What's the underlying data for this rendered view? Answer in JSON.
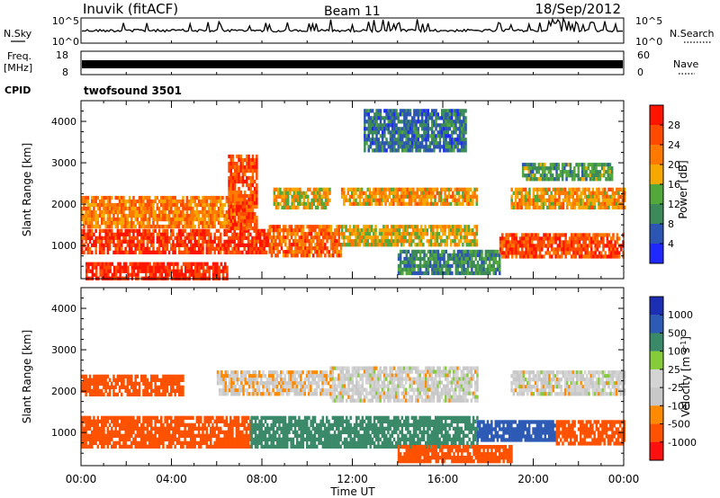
{
  "header": {
    "station": "Inuvik (fitACF)",
    "beam": "Beam 11",
    "date": "18/Sep/2012"
  },
  "noise_panel": {
    "left_label": "N.Sky",
    "left_ticks": [
      "10^5",
      "10^0"
    ],
    "right_ticks": [
      "10^5",
      "10^0"
    ],
    "right_label": "N.Search"
  },
  "freq_panel": {
    "left_label_top": "Freq.",
    "left_label_bottom": "[MHz]",
    "left_ticks": [
      "18",
      "8"
    ],
    "right_ticks": [
      "60",
      "0"
    ],
    "right_label": "Nave"
  },
  "cpid": {
    "label": "CPID",
    "value": "twofsound 3501"
  },
  "x_axis": {
    "label": "Time UT",
    "ticks": [
      "00:00",
      "04:00",
      "08:00",
      "12:00",
      "16:00",
      "20:00",
      "00:00"
    ],
    "range_hours": [
      0,
      24
    ]
  },
  "colors": {
    "power_scale": [
      "#1e28ff",
      "#2d56b4",
      "#3c8a5a",
      "#52a83a",
      "#f5a800",
      "#ff7800",
      "#ff4a00",
      "#ff1400"
    ],
    "velocity_scale": [
      "#ff1010",
      "#ff5200",
      "#ff8a00",
      "#c8c8c8",
      "#d4d4d4",
      "#86cc3a",
      "#3a8a6a",
      "#2c5ab4",
      "#1c2eb4"
    ]
  },
  "chart_data": [
    {
      "type": "heatmap",
      "title": "Power",
      "ylabel": "Slant Range [km]",
      "xlabel": "",
      "ylim": [
        200,
        4500
      ],
      "xlim_hours": [
        0,
        24
      ],
      "y_ticks": [
        1000,
        2000,
        3000,
        4000
      ],
      "colorbar": {
        "label": "Power [dB]",
        "ticks": [
          "28",
          "24",
          "20",
          "16",
          "12",
          "8",
          "4"
        ],
        "range": [
          0,
          32
        ]
      },
      "regions": [
        {
          "t0": 0.0,
          "t1": 8.3,
          "r0": 800,
          "r1": 1400,
          "value": 28
        },
        {
          "t0": 0.0,
          "t1": 7.5,
          "r0": 1500,
          "r1": 2200,
          "value": 22
        },
        {
          "t0": 0.2,
          "t1": 6.5,
          "r0": 200,
          "r1": 600,
          "value": 30
        },
        {
          "t0": 6.5,
          "t1": 7.8,
          "r0": 1400,
          "r1": 3200,
          "value": 26
        },
        {
          "t0": 8.3,
          "t1": 11.5,
          "r0": 800,
          "r1": 1500,
          "value": 24
        },
        {
          "t0": 8.5,
          "t1": 11.0,
          "r0": 1900,
          "r1": 2400,
          "value": 18
        },
        {
          "t0": 11.5,
          "t1": 17.5,
          "r0": 2000,
          "r1": 2400,
          "value": 20
        },
        {
          "t0": 11.5,
          "t1": 17.5,
          "r0": 1000,
          "r1": 1500,
          "value": 18
        },
        {
          "t0": 14.0,
          "t1": 18.5,
          "r0": 300,
          "r1": 900,
          "value": 10
        },
        {
          "t0": 18.5,
          "t1": 24.0,
          "r0": 700,
          "r1": 1300,
          "value": 26
        },
        {
          "t0": 19.0,
          "t1": 24.0,
          "r0": 1900,
          "r1": 2400,
          "value": 20
        },
        {
          "t0": 19.5,
          "t1": 23.5,
          "r0": 2600,
          "r1": 3000,
          "value": 12
        },
        {
          "t0": 12.5,
          "t1": 17.0,
          "r0": 3300,
          "r1": 4300,
          "value": 8
        }
      ]
    },
    {
      "type": "heatmap",
      "title": "Velocity",
      "ylabel": "Slant Range [km]",
      "xlabel": "Time UT",
      "ylim": [
        200,
        4500
      ],
      "xlim_hours": [
        0,
        24
      ],
      "y_ticks": [
        1000,
        2000,
        3000,
        4000
      ],
      "colorbar": {
        "label": "Velocity [m s^-1]",
        "ticks": [
          "1000",
          "500",
          "100",
          "25",
          "-25",
          "-100",
          "-500",
          "-1000"
        ]
      },
      "regions": [
        {
          "t0": 0.0,
          "t1": 7.5,
          "r0": 700,
          "r1": 1400,
          "value": -400
        },
        {
          "t0": 0.0,
          "t1": 4.5,
          "r0": 1900,
          "r1": 2400,
          "value": -300
        },
        {
          "t0": 7.5,
          "t1": 17.5,
          "r0": 700,
          "r1": 1400,
          "value": 200
        },
        {
          "t0": 11.0,
          "t1": 17.5,
          "r0": 1800,
          "r1": 2600,
          "value": 0
        },
        {
          "t0": 6.0,
          "t1": 11.0,
          "r0": 1900,
          "r1": 2500,
          "value": -10
        },
        {
          "t0": 17.5,
          "t1": 21.0,
          "r0": 800,
          "r1": 1300,
          "value": 900
        },
        {
          "t0": 21.0,
          "t1": 24.0,
          "r0": 700,
          "r1": 1300,
          "value": -450
        },
        {
          "t0": 19.0,
          "t1": 24.0,
          "r0": 1900,
          "r1": 2500,
          "value": 0
        },
        {
          "t0": 14.0,
          "t1": 19.0,
          "r0": 300,
          "r1": 700,
          "value": -150
        }
      ]
    }
  ]
}
